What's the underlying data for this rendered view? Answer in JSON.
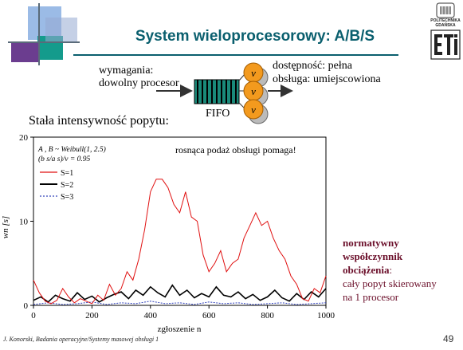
{
  "header": {
    "title": "System wieloprocesorowy: A/B/S",
    "logo_text_1": "POLITECHNIKA",
    "logo_text_2": "GDAŃSKA"
  },
  "diagram": {
    "demand_line1": "wymagania:",
    "demand_line2": "dowolny procesor",
    "queue_label": "FIFO",
    "server_symbol": "v",
    "availability_line1": "dostępność: pełna",
    "availability_line2": "obsługa: umiejscowiona"
  },
  "subheading": "Stała intensywność popytu:",
  "chart_data": {
    "type": "line",
    "xlabel": "zgłoszenie n",
    "ylabel": "wn [s]",
    "xlim": [
      0,
      1000
    ],
    "ylim": [
      0,
      20
    ],
    "x_ticks": [
      "0",
      "200",
      "400",
      "600",
      "800",
      "1000"
    ],
    "y_ticks": [
      "0",
      "10",
      "20"
    ],
    "annotation_dist": "A , B ~ Weibull(1, 2.5)",
    "annotation_ratio": "(b s/a s)/v = 0.95",
    "annotation_main": "rosnąca podaż obsługi pomaga!",
    "series": [
      {
        "name": "S=1",
        "color": "#e01010",
        "x": [
          0,
          20,
          40,
          60,
          80,
          100,
          120,
          140,
          160,
          180,
          200,
          220,
          240,
          260,
          280,
          300,
          320,
          340,
          360,
          380,
          400,
          420,
          440,
          460,
          480,
          500,
          520,
          540,
          560,
          580,
          600,
          620,
          640,
          660,
          680,
          700,
          720,
          740,
          760,
          780,
          800,
          820,
          840,
          860,
          880,
          900,
          920,
          940,
          960,
          980,
          1000
        ],
        "values": [
          3.0,
          1.5,
          0.5,
          0.2,
          0.6,
          2.0,
          1.0,
          0.3,
          0.8,
          0.5,
          0.2,
          1.2,
          0.6,
          2.5,
          1.2,
          2.0,
          4.0,
          3.0,
          5.5,
          9.0,
          13.5,
          15.0,
          15.0,
          14.0,
          12.0,
          11.0,
          13.5,
          10.5,
          10.0,
          6.0,
          4.0,
          5.0,
          6.5,
          4.0,
          5.0,
          5.5,
          8.0,
          9.5,
          11.0,
          9.5,
          10.0,
          8.0,
          6.5,
          5.5,
          3.5,
          2.5,
          0.8,
          0.5,
          2.0,
          1.5,
          3.5
        ]
      },
      {
        "name": "S=2",
        "color": "#000000",
        "x": [
          0,
          25,
          50,
          75,
          100,
          125,
          150,
          175,
          200,
          225,
          250,
          275,
          300,
          325,
          350,
          375,
          400,
          425,
          450,
          475,
          500,
          525,
          550,
          575,
          600,
          625,
          650,
          675,
          700,
          725,
          750,
          775,
          800,
          825,
          850,
          875,
          900,
          925,
          950,
          975,
          1000
        ],
        "values": [
          0.6,
          1.0,
          0.4,
          1.2,
          0.8,
          0.5,
          1.5,
          0.7,
          1.1,
          0.4,
          0.9,
          1.3,
          1.6,
          0.8,
          1.8,
          1.2,
          2.2,
          1.5,
          1.0,
          2.4,
          1.2,
          1.8,
          0.9,
          1.4,
          1.0,
          2.2,
          1.2,
          1.0,
          1.6,
          0.8,
          1.3,
          0.6,
          1.0,
          1.8,
          0.9,
          0.5,
          1.4,
          0.7,
          1.6,
          1.0,
          2.0
        ]
      },
      {
        "name": "S=3",
        "color": "#3344bb",
        "x": [
          0,
          50,
          100,
          150,
          200,
          250,
          300,
          350,
          400,
          450,
          500,
          550,
          600,
          650,
          700,
          750,
          800,
          850,
          900,
          950,
          1000
        ],
        "values": [
          0.1,
          0.3,
          0.1,
          0.2,
          0.4,
          0.1,
          0.3,
          0.2,
          0.5,
          0.2,
          0.3,
          0.1,
          0.4,
          0.2,
          0.3,
          0.1,
          0.2,
          0.3,
          0.1,
          0.2,
          0.3
        ]
      }
    ]
  },
  "sidebar": {
    "line1": "normatywny",
    "line2": "współczynnik",
    "line3_bold": "obciążenia",
    "line3_rest": ":",
    "line4": "cały popyt skierowany",
    "line5": "na 1 procesor"
  },
  "footer": {
    "text": "J. Konorski, Badania operacyjne/Systemy masowej obsługi 1",
    "page": "49"
  },
  "colors": {
    "title": "#0a5f6e",
    "accent": "#6b0f2a",
    "server": "#f39a1e",
    "queue": "#1a8a7a"
  }
}
